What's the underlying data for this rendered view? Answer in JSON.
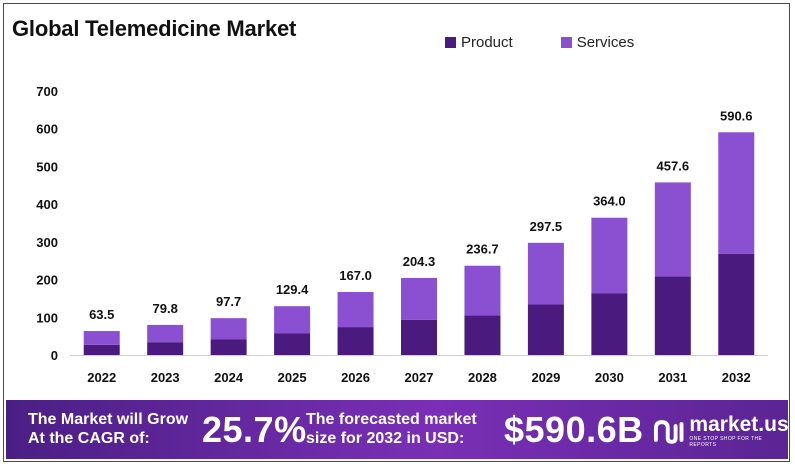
{
  "chart_data": {
    "type": "bar",
    "stacked": true,
    "title": "Global Telemedicine Market",
    "categories": [
      "2022",
      "2023",
      "2024",
      "2025",
      "2026",
      "2027",
      "2028",
      "2029",
      "2030",
      "2031",
      "2032"
    ],
    "series": [
      {
        "name": "Product",
        "color": "#4b1a7e",
        "values": [
          27,
          34,
          42,
          57,
          74,
          93,
          105,
          134,
          164,
          208,
          268
        ]
      },
      {
        "name": "Services",
        "color": "#8b4fd1",
        "values": [
          36.5,
          45.8,
          55.7,
          72.4,
          93.0,
          111.3,
          131.7,
          163.5,
          200.0,
          249.6,
          322.6
        ]
      }
    ],
    "totals": [
      "63.5",
      "79.8",
      "97.7",
      "129.4",
      "167.0",
      "204.3",
      "236.7",
      "297.5",
      "364.0",
      "457.6",
      "590.6"
    ],
    "ylim": [
      0,
      700
    ],
    "yticks": [
      "0",
      "100",
      "200",
      "300",
      "400",
      "500",
      "600",
      "700"
    ],
    "legend_position": "top-right",
    "grid": false
  },
  "banner": {
    "cagr_text": "The Market will Grow At the CAGR of:",
    "cagr_value": "25.7%",
    "forecast_text": "The forecasted market size for 2032 in USD:",
    "forecast_value": "$590.6B",
    "logo_name": "market.us",
    "logo_tagline": "ONE STOP SHOP FOR THE REPORTS",
    "logo_icon": "market-us-logo-icon"
  }
}
